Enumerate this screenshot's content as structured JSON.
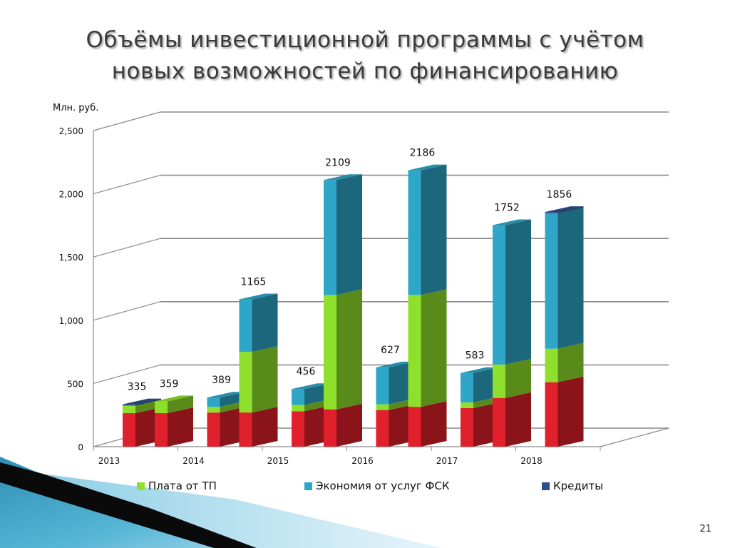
{
  "slide": {
    "title_line1": "Объёмы инвестиционной программы с учётом",
    "title_line2": "новых возможностей по финансированию",
    "page_number": "21"
  },
  "colors": {
    "plata_tp": "#8fe02c",
    "ekonomia_fsk": "#2fa6c8",
    "kredity": "#2a4f8a",
    "base": "#e0202c"
  },
  "chart_data": {
    "type": "bar",
    "stacked": true,
    "three_d": true,
    "ylabel": "Млн. руб.",
    "ylim": [
      0,
      2500
    ],
    "yticks": [
      "0",
      "500",
      "1,000",
      "1,500",
      "2,000",
      "2,500"
    ],
    "ytick_values": [
      0,
      500,
      1000,
      1500,
      2000,
      2500
    ],
    "x_labels": [
      "2013",
      "2014",
      "2015",
      "2016",
      "2017",
      "2018"
    ],
    "grid": true,
    "legend_position": "bottom",
    "legend": [
      {
        "label": "Плата от ТП",
        "color": "#8fe02c"
      },
      {
        "label": "Экономия от услуг ФСК",
        "color": "#2fa6c8"
      },
      {
        "label": "Кредиты",
        "color": "#2a4f8a"
      }
    ],
    "bars": [
      {
        "year": "2013",
        "total_label": "335",
        "segments": {
          "base": 265,
          "plata_tp": 60,
          "ekonomia_fsk": 0,
          "kredity": 10
        }
      },
      {
        "year": "2013",
        "total_label": "359",
        "segments": {
          "base": 265,
          "plata_tp": 94,
          "ekonomia_fsk": 0,
          "kredity": 0
        }
      },
      {
        "year": "2014",
        "total_label": "389",
        "segments": {
          "base": 270,
          "plata_tp": 45,
          "ekonomia_fsk": 74,
          "kredity": 0
        }
      },
      {
        "year": "2014",
        "total_label": "1165",
        "segments": {
          "base": 270,
          "plata_tp": 480,
          "ekonomia_fsk": 415,
          "kredity": 0
        }
      },
      {
        "year": "2015",
        "total_label": "456",
        "segments": {
          "base": 280,
          "plata_tp": 50,
          "ekonomia_fsk": 126,
          "kredity": 0
        }
      },
      {
        "year": "2015",
        "total_label": "2109",
        "segments": {
          "base": 295,
          "plata_tp": 905,
          "ekonomia_fsk": 909,
          "kredity": 0
        }
      },
      {
        "year": "2016",
        "total_label": "627",
        "segments": {
          "base": 290,
          "plata_tp": 45,
          "ekonomia_fsk": 292,
          "kredity": 0
        }
      },
      {
        "year": "2016",
        "total_label": "2186",
        "segments": {
          "base": 315,
          "plata_tp": 885,
          "ekonomia_fsk": 986,
          "kredity": 0
        }
      },
      {
        "year": "2017",
        "total_label": "583",
        "segments": {
          "base": 305,
          "plata_tp": 45,
          "ekonomia_fsk": 233,
          "kredity": 0
        }
      },
      {
        "year": "2017",
        "total_label": "1752",
        "segments": {
          "base": 385,
          "plata_tp": 265,
          "ekonomia_fsk": 1102,
          "kredity": 0
        }
      },
      {
        "year": "2018",
        "total_label": "1856",
        "segments": {
          "base": 510,
          "plata_tp": 265,
          "ekonomia_fsk": 1071,
          "kredity": 10
        }
      }
    ]
  }
}
